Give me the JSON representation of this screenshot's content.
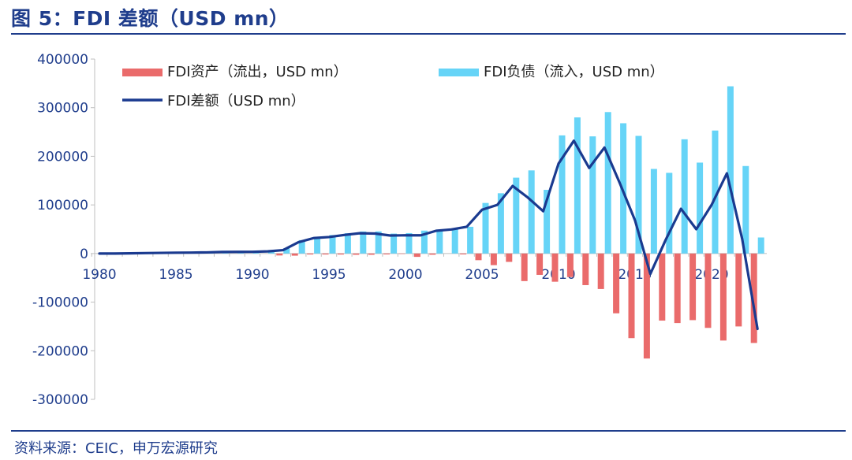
{
  "figure": {
    "title": "图 5：FDI 差额（USD mn）",
    "source": "资料来源：CEIC，申万宏源研究"
  },
  "colors": {
    "brand": "#1f3d8c",
    "assets": "#ea6b6b",
    "liabilities": "#66d4f7",
    "net": "#1a3a8f",
    "axis": "#bfbfbf",
    "tick_text": "#1f3d8c"
  },
  "chart_data": {
    "type": "bar",
    "combo": "bars + line",
    "x": [
      1980,
      1981,
      1982,
      1983,
      1984,
      1985,
      1986,
      1987,
      1988,
      1989,
      1990,
      1991,
      1992,
      1993,
      1994,
      1995,
      1996,
      1997,
      1998,
      1999,
      2000,
      2001,
      2002,
      2003,
      2004,
      2005,
      2006,
      2007,
      2008,
      2009,
      2010,
      2011,
      2012,
      2013,
      2014,
      2015,
      2016,
      2017,
      2018,
      2019,
      2020,
      2021,
      2022,
      2023
    ],
    "ylim": [
      -300000,
      400000
    ],
    "yticks": [
      400000,
      300000,
      200000,
      100000,
      0,
      -100000,
      -200000,
      -300000
    ],
    "ytick_labels": [
      "400000",
      "300000",
      "200000",
      "100000",
      "0",
      "-100000",
      "-200000",
      "-300000"
    ],
    "xticks": [
      1980,
      1985,
      1990,
      1995,
      2000,
      2005,
      2010,
      2015,
      2020
    ],
    "xtick_labels": [
      "1980",
      "1985",
      "1990",
      "1995",
      "2000",
      "2005",
      "2010",
      "2015",
      "2020"
    ],
    "grid": false,
    "legend_position": "top",
    "series": [
      {
        "name": "FDI资产（流出，USD mn）",
        "kind": "bar",
        "color": "#ea6b6b",
        "values": [
          0,
          0,
          0,
          0,
          0,
          0,
          0,
          0,
          0,
          0,
          0,
          0,
          -4000,
          -4400,
          -2000,
          -2000,
          -2100,
          -2600,
          -2600,
          -1800,
          -900,
          -6900,
          -2500,
          0,
          -1800,
          -13700,
          -23900,
          -17200,
          -56700,
          -43900,
          -58000,
          -48400,
          -65000,
          -73000,
          -123000,
          -174000,
          -216000,
          -138000,
          -143000,
          -137000,
          -153000,
          -179000,
          -150000,
          -184000
        ]
      },
      {
        "name": "FDI负债（流入，USD mn）",
        "kind": "bar",
        "color": "#66d4f7",
        "values": [
          0,
          0,
          400,
          900,
          1300,
          1700,
          1900,
          2300,
          3200,
          3400,
          3500,
          4400,
          11000,
          27500,
          33800,
          38000,
          41700,
          45300,
          45500,
          41000,
          42000,
          47100,
          49300,
          49500,
          55000,
          104000,
          124000,
          156000,
          171000,
          131000,
          243000,
          280000,
          241000,
          291000,
          268000,
          242000,
          174000,
          166000,
          235000,
          187000,
          253000,
          344000,
          180000,
          33000
        ]
      },
      {
        "name": "FDI差额（USD mn）",
        "kind": "line",
        "color": "#1a3a8f",
        "values": [
          0,
          0,
          400,
          900,
          1300,
          1700,
          1900,
          2300,
          3200,
          3400,
          3500,
          4400,
          7000,
          23100,
          31800,
          33900,
          38100,
          41700,
          41100,
          37000,
          37500,
          37400,
          46800,
          49500,
          55000,
          90000,
          100000,
          139000,
          115000,
          87000,
          185000,
          232000,
          176000,
          218000,
          145000,
          68000,
          -42000,
          28000,
          92000,
          50000,
          100000,
          165000,
          30000,
          -155000
        ]
      }
    ]
  }
}
